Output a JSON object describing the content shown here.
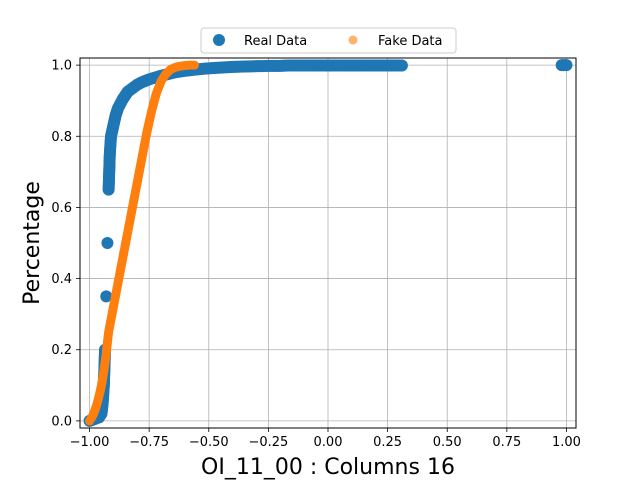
{
  "chart_data": {
    "type": "scatter",
    "title": "",
    "xlabel": "OI_11_00 : Columns 16",
    "ylabel": "Percentage",
    "xlim": [
      -1.04,
      1.04
    ],
    "ylim": [
      -0.02,
      1.02
    ],
    "xticks": [
      -1.0,
      -0.75,
      -0.5,
      -0.25,
      0.0,
      0.25,
      0.5,
      0.75,
      1.0
    ],
    "xtick_labels": [
      "−1.00",
      "−0.75",
      "−0.50",
      "−0.25",
      "0.00",
      "0.25",
      "0.50",
      "0.75",
      "1.00"
    ],
    "yticks": [
      0.0,
      0.2,
      0.4,
      0.6,
      0.8,
      1.0
    ],
    "ytick_labels": [
      "0.0",
      "0.2",
      "0.4",
      "0.6",
      "0.8",
      "1.0"
    ],
    "grid": true,
    "legend": {
      "placement": "top-center",
      "ncol": 2
    },
    "series": [
      {
        "name": "Real Data",
        "color": "#1f77b4",
        "marker_size": "large",
        "x": [
          -1.0,
          -0.98,
          -0.96,
          -0.95,
          -0.945,
          -0.94,
          -0.935,
          -0.93,
          -0.925,
          -0.92,
          -0.915,
          -0.91,
          -0.9,
          -0.89,
          -0.88,
          -0.86,
          -0.84,
          -0.82,
          -0.8,
          -0.78,
          -0.75,
          -0.72,
          -0.7,
          -0.67,
          -0.64,
          -0.6,
          -0.55,
          -0.5,
          -0.45,
          -0.4,
          -0.35,
          -0.3,
          -0.28,
          -0.25,
          -0.22,
          -0.2,
          -0.16,
          -0.15,
          -0.1,
          -0.05,
          0.05,
          0.06,
          0.13,
          0.2,
          0.31,
          0.98,
          1.0
        ],
        "y": [
          0.0,
          0.005,
          0.01,
          0.02,
          0.05,
          0.1,
          0.2,
          0.35,
          0.5,
          0.65,
          0.75,
          0.8,
          0.83,
          0.86,
          0.88,
          0.905,
          0.925,
          0.935,
          0.945,
          0.952,
          0.96,
          0.966,
          0.97,
          0.975,
          0.98,
          0.984,
          0.988,
          0.991,
          0.993,
          0.995,
          0.996,
          0.997,
          0.997,
          0.998,
          0.998,
          0.998,
          0.999,
          0.999,
          0.999,
          0.999,
          0.999,
          0.999,
          0.999,
          0.999,
          0.999,
          1.0,
          1.0
        ]
      },
      {
        "name": "Fake Data",
        "color": "#ff7f0e",
        "marker_size": "medium",
        "x": [
          -1.0,
          -0.99,
          -0.98,
          -0.97,
          -0.96,
          -0.95,
          -0.94,
          -0.93,
          -0.92,
          -0.9,
          -0.88,
          -0.86,
          -0.84,
          -0.82,
          -0.8,
          -0.78,
          -0.76,
          -0.74,
          -0.72,
          -0.7,
          -0.68,
          -0.66,
          -0.64,
          -0.62,
          -0.6,
          -0.58,
          -0.56
        ],
        "y": [
          0.0,
          0.01,
          0.025,
          0.045,
          0.07,
          0.1,
          0.14,
          0.19,
          0.25,
          0.32,
          0.39,
          0.46,
          0.53,
          0.6,
          0.67,
          0.74,
          0.81,
          0.87,
          0.92,
          0.955,
          0.975,
          0.988,
          0.994,
          0.997,
          0.999,
          1.0,
          1.0
        ]
      }
    ]
  }
}
